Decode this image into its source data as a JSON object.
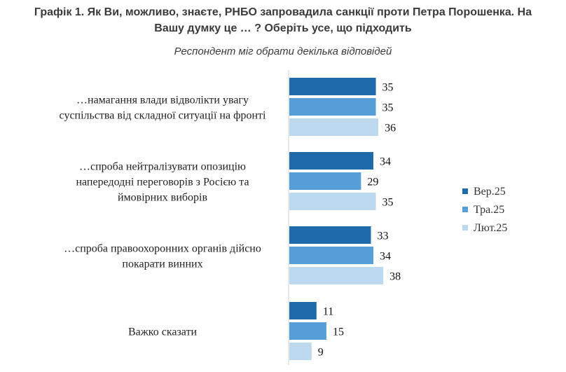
{
  "chart_data": {
    "type": "bar",
    "orientation": "horizontal",
    "title_lines": [
      "Графік 1. Як Ви, можливо, знаєте, РНБО запровадила санкції проти Петра Порошенка. На",
      "Вашу думку це … ? Оберіть усе, що підходить"
    ],
    "subtitle": "Респондент міг обрати декілька відповідей",
    "categories": [
      [
        "…намагання влади відволікти увагу",
        "суспільства від складної ситуації на фронті"
      ],
      [
        "…спроба нейтралізувати опозицію",
        "напередодні переговорів з Росією та",
        "ймовірних виборів"
      ],
      [
        "…спроба правоохоронних органів дійсно",
        "покарати винних"
      ],
      [
        "Важко сказати"
      ]
    ],
    "series": [
      {
        "name": "Вер.25",
        "color": "#1f6aab",
        "values": [
          35,
          34,
          33,
          11
        ]
      },
      {
        "name": "Тра.25",
        "color": "#559ed7",
        "values": [
          35,
          29,
          34,
          15
        ]
      },
      {
        "name": "Лют.25",
        "color": "#bdd9ef",
        "values": [
          36,
          35,
          38,
          9
        ]
      }
    ],
    "xlim": [
      0,
      100
    ],
    "grid": false,
    "legend_position": "right"
  }
}
